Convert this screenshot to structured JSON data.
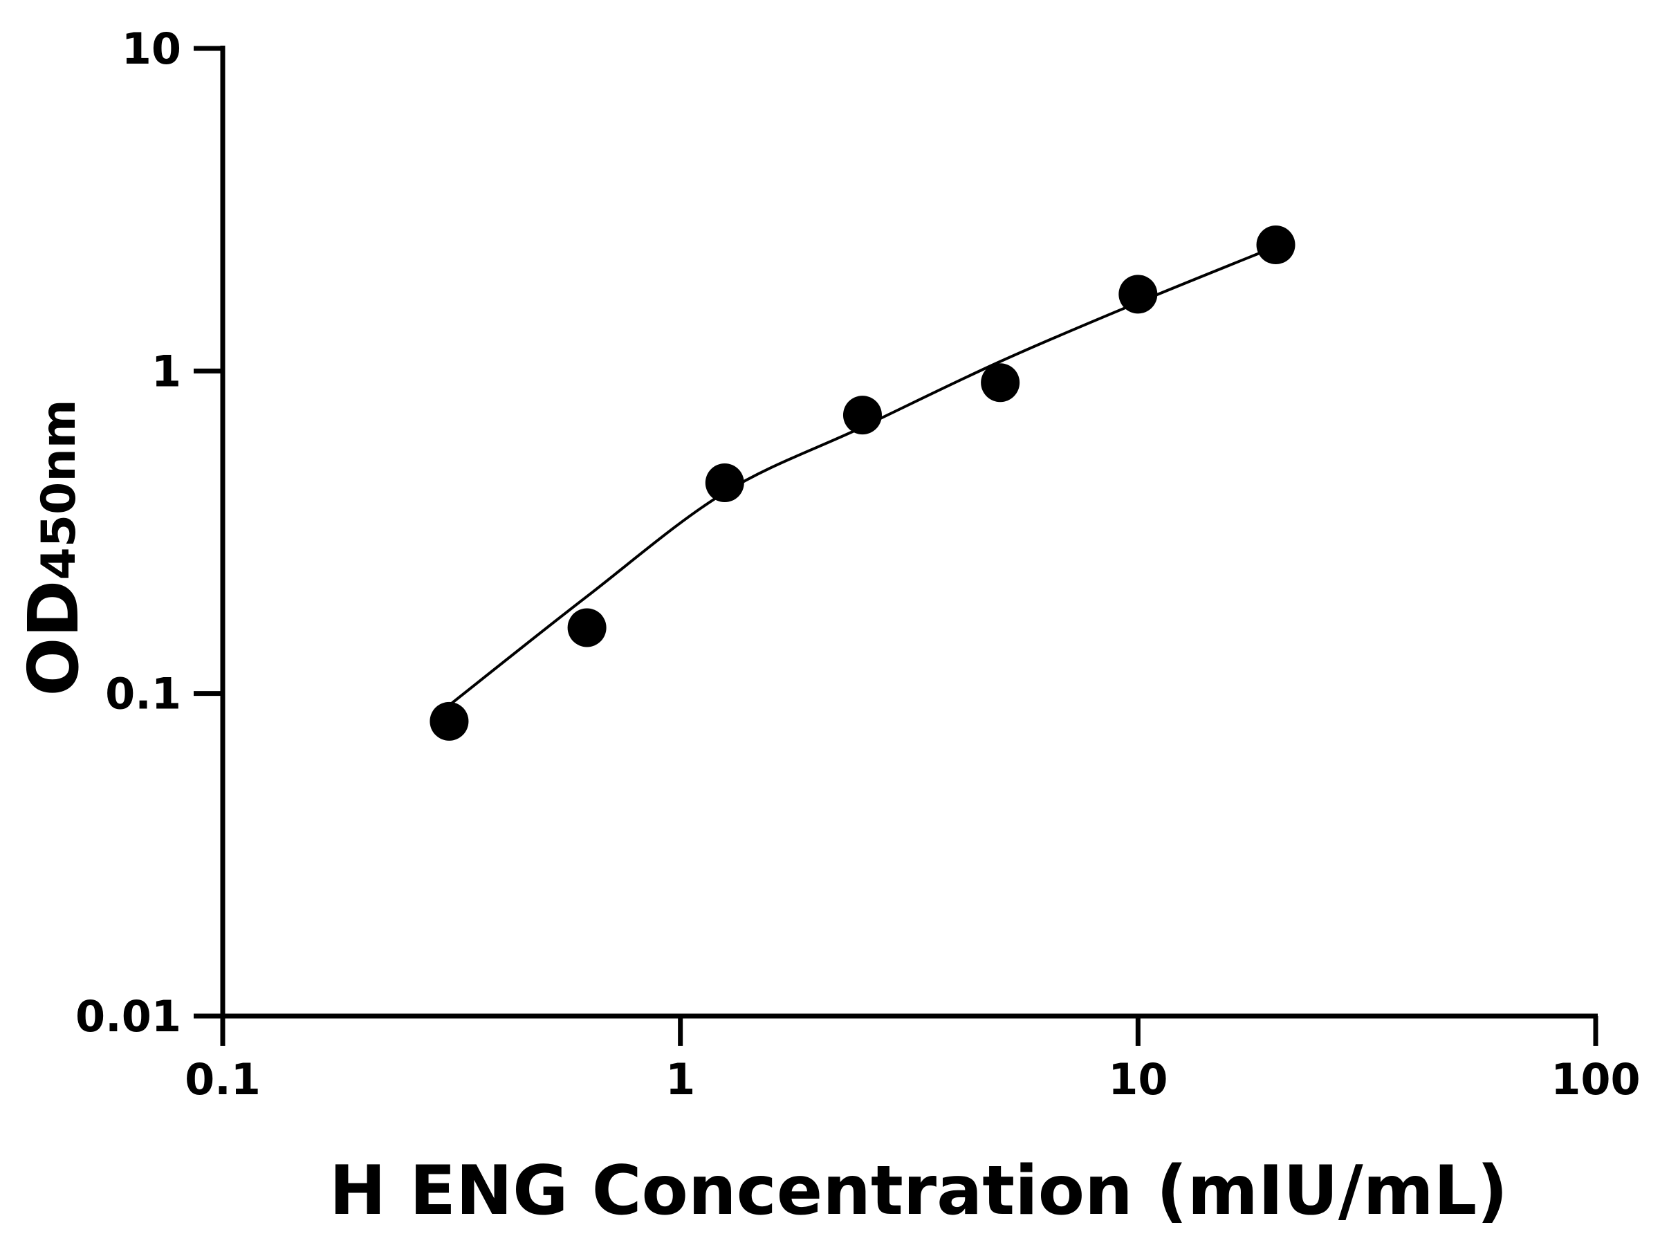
{
  "chart_data": {
    "type": "scatter",
    "x_label": "H ENG Concentration (mIU/mL)",
    "y_label": {
      "main": "OD",
      "sub": "450nm"
    },
    "xlog": true,
    "ylog": true,
    "xlim": [
      0.1,
      100
    ],
    "xticks": [
      0.1,
      1,
      10,
      100
    ],
    "ylim": [
      0.01,
      10
    ],
    "yticks": [
      0.01,
      0.1,
      1,
      10
    ],
    "series": [
      {
        "kind": "points",
        "color": "#000000",
        "x": [
          0.3125,
          0.625,
          1.25,
          2.5,
          5,
          10,
          20
        ],
        "values": [
          0.082,
          0.16,
          0.45,
          0.73,
          0.92,
          1.73,
          2.46
        ]
      },
      {
        "kind": "fit",
        "color": "#000000",
        "x": [
          0.3125,
          0.625,
          1.25,
          2.5,
          5,
          10,
          20
        ],
        "values": [
          0.092,
          0.2,
          0.42,
          0.67,
          1.07,
          1.63,
          2.43
        ]
      }
    ]
  }
}
